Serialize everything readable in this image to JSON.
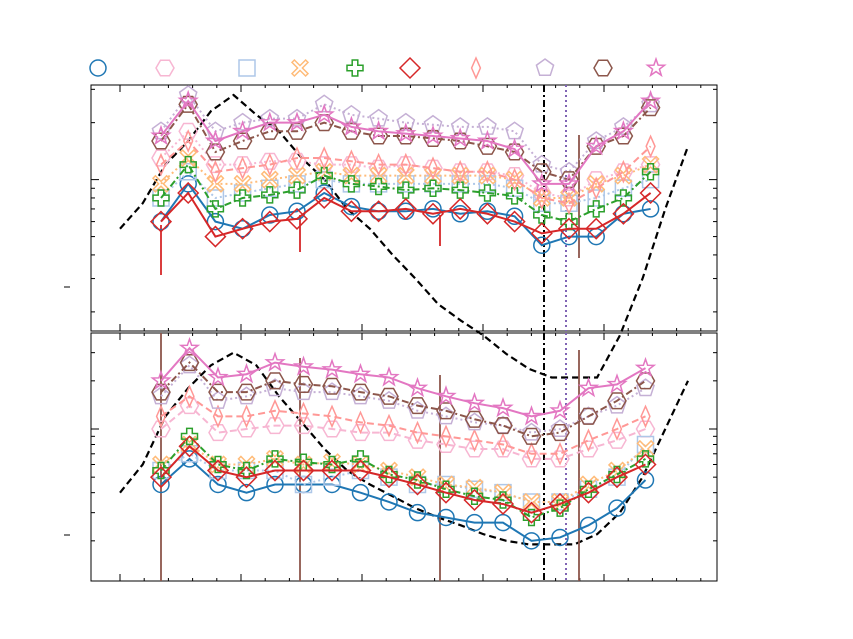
{
  "chart_data": {
    "type": "line",
    "y_scale": "log",
    "x": [
      1,
      2,
      3,
      4,
      5,
      6,
      7,
      8,
      9,
      10,
      11,
      12,
      13,
      14,
      15,
      16,
      17,
      18,
      19,
      20,
      21,
      22,
      23
    ],
    "legend": {
      "placement": "top",
      "entries": 10
    },
    "panels": [
      {
        "name": "top",
        "series": [
          {
            "marker": "circle",
            "color": "#1f77b4",
            "linestyle": "solid",
            "values": [
              0.6,
              0.95,
              0.6,
              0.55,
              0.65,
              0.68,
              0.85,
              0.72,
              0.68,
              0.68,
              0.7,
              0.66,
              0.68,
              0.64,
              0.45,
              0.5,
              0.5,
              0.66,
              0.7
            ]
          },
          {
            "marker": "hexagon",
            "color": "#f7b6d2",
            "linestyle": "dotted",
            "values": [
              1.3,
              1.8,
              1.2,
              1.2,
              1.25,
              1.25,
              1.2,
              1.2,
              1.15,
              1.2,
              1.15,
              1.1,
              1.1,
              1.05,
              0.85,
              0.8,
              1.0,
              1.1,
              1.2
            ]
          },
          {
            "marker": "square",
            "color": "#aec7e8",
            "linestyle": "dotted",
            "values": [
              0.8,
              1.1,
              0.8,
              0.85,
              0.9,
              0.95,
              1.0,
              0.95,
              0.95,
              0.95,
              0.95,
              0.95,
              0.95,
              0.9,
              0.75,
              0.75,
              0.8,
              0.9,
              1.0
            ]
          },
          {
            "marker": "x",
            "color": "#ffbb78",
            "linestyle": "dotted",
            "values": [
              0.95,
              1.3,
              0.95,
              0.95,
              1.0,
              1.05,
              1.1,
              1.05,
              1.05,
              1.05,
              1.05,
              1.05,
              1.05,
              1.0,
              0.8,
              0.8,
              0.95,
              1.05,
              1.2
            ]
          },
          {
            "marker": "plus",
            "color": "#2ca02c",
            "linestyle": "dashdot",
            "values": [
              0.8,
              1.2,
              0.7,
              0.8,
              0.83,
              0.88,
              1.05,
              0.95,
              0.92,
              0.88,
              0.9,
              0.88,
              0.85,
              0.82,
              0.65,
              0.6,
              0.7,
              0.8,
              1.1
            ]
          },
          {
            "marker": "diamond",
            "color": "#d62728",
            "linestyle": "solid",
            "values": [
              0.6,
              0.85,
              0.5,
              0.55,
              0.6,
              0.62,
              0.8,
              0.68,
              0.68,
              0.7,
              0.66,
              0.7,
              0.66,
              0.6,
              0.52,
              0.55,
              0.55,
              0.66,
              0.85
            ]
          },
          {
            "marker": "thin-diamond",
            "color": "#ff9896",
            "linestyle": "dashed",
            "values": [
              1.2,
              1.6,
              1.1,
              1.15,
              1.2,
              1.3,
              1.3,
              1.25,
              1.2,
              1.2,
              1.15,
              1.1,
              1.1,
              1.0,
              0.8,
              0.75,
              0.9,
              1.1,
              1.5
            ]
          },
          {
            "marker": "pentagon",
            "color": "#c5b0d5",
            "linestyle": "dotted",
            "values": [
              1.8,
              2.8,
              1.8,
              2.0,
              2.1,
              2.1,
              2.5,
              2.2,
              2.1,
              2.0,
              1.95,
              1.9,
              1.9,
              1.8,
              1.2,
              1.1,
              1.6,
              1.9,
              2.5
            ]
          },
          {
            "marker": "hexagon",
            "color": "#8c564b",
            "linestyle": "dashdot",
            "values": [
              1.6,
              2.5,
              1.4,
              1.6,
              1.8,
              1.8,
              2.0,
              1.8,
              1.7,
              1.7,
              1.65,
              1.6,
              1.5,
              1.4,
              1.1,
              1.0,
              1.5,
              1.7,
              2.4
            ]
          },
          {
            "marker": "star",
            "color": "#e377c2",
            "linestyle": "solid",
            "values": [
              1.7,
              2.6,
              1.6,
              1.8,
              2.0,
              2.0,
              2.2,
              1.9,
              1.8,
              1.75,
              1.7,
              1.65,
              1.6,
              1.45,
              0.95,
              0.95,
              1.5,
              1.8,
              2.6
            ]
          }
        ]
      },
      {
        "name": "bottom",
        "series": [
          {
            "marker": "circle",
            "color": "#1f77b4",
            "linestyle": "solid",
            "values": [
              0.45,
              0.65,
              0.45,
              0.4,
              0.45,
              0.45,
              0.45,
              0.4,
              0.35,
              0.3,
              0.28,
              0.26,
              0.26,
              0.2,
              0.21,
              0.25,
              0.32,
              0.48
            ]
          },
          {
            "marker": "hexagon",
            "color": "#f7b6d2",
            "linestyle": "dashed",
            "values": [
              1.0,
              1.4,
              0.95,
              1.0,
              1.05,
              1.05,
              1.0,
              0.95,
              0.95,
              0.85,
              0.8,
              0.75,
              0.75,
              0.65,
              0.65,
              0.75,
              0.85,
              1.0
            ]
          },
          {
            "marker": "square",
            "color": "#aec7e8",
            "linestyle": "dotted",
            "values": [
              0.55,
              0.7,
              0.55,
              0.55,
              0.55,
              0.45,
              0.5,
              0.55,
              0.5,
              0.45,
              0.45,
              0.42,
              0.4,
              0.35,
              0.35,
              0.42,
              0.5,
              0.8
            ]
          },
          {
            "marker": "x",
            "color": "#ffbb78",
            "linestyle": "dotted",
            "values": [
              0.6,
              0.8,
              0.6,
              0.6,
              0.65,
              0.6,
              0.62,
              0.6,
              0.55,
              0.5,
              0.45,
              0.43,
              0.4,
              0.35,
              0.35,
              0.45,
              0.55,
              0.75
            ]
          },
          {
            "marker": "plus",
            "color": "#2ca02c",
            "linestyle": "dashdot",
            "values": [
              0.55,
              0.9,
              0.6,
              0.55,
              0.65,
              0.62,
              0.6,
              0.65,
              0.52,
              0.48,
              0.42,
              0.38,
              0.36,
              0.28,
              0.32,
              0.42,
              0.52,
              0.65
            ]
          },
          {
            "marker": "diamond",
            "color": "#d62728",
            "linestyle": "solid",
            "values": [
              0.5,
              0.78,
              0.55,
              0.5,
              0.55,
              0.55,
              0.55,
              0.55,
              0.5,
              0.45,
              0.4,
              0.36,
              0.34,
              0.3,
              0.34,
              0.4,
              0.5,
              0.6
            ]
          },
          {
            "marker": "thin-diamond",
            "color": "#ff9896",
            "linestyle": "dashed",
            "values": [
              1.2,
              1.6,
              1.2,
              1.2,
              1.3,
              1.25,
              1.2,
              1.1,
              1.05,
              0.95,
              0.9,
              0.85,
              0.8,
              0.7,
              0.7,
              0.85,
              1.0,
              1.2
            ]
          },
          {
            "marker": "pentagon",
            "color": "#c5b0d5",
            "linestyle": "dotted",
            "values": [
              1.6,
              2.5,
              1.5,
              1.6,
              1.8,
              1.7,
              1.7,
              1.6,
              1.5,
              1.3,
              1.2,
              1.1,
              1.05,
              0.95,
              1.0,
              1.2,
              1.4,
              1.8
            ]
          },
          {
            "marker": "hexagon",
            "color": "#8c564b",
            "linestyle": "dashdot",
            "values": [
              1.7,
              2.6,
              1.7,
              1.7,
              2.0,
              1.9,
              1.85,
              1.7,
              1.6,
              1.4,
              1.3,
              1.15,
              1.05,
              0.9,
              0.95,
              1.2,
              1.5,
              2.0
            ]
          },
          {
            "marker": "star",
            "color": "#e377c2",
            "linestyle": "solid",
            "values": [
              2.0,
              3.2,
              2.1,
              2.2,
              2.6,
              2.45,
              2.35,
              2.2,
              2.1,
              1.8,
              1.6,
              1.45,
              1.35,
              1.2,
              1.3,
              1.8,
              1.9,
              2.4
            ]
          }
        ]
      }
    ],
    "reference_curves": [
      {
        "panel": "top",
        "color": "#000000",
        "linestyle": "dashed",
        "values": [
          0.55,
          0.75,
          1.2,
          1.6,
          2.3,
          2.8,
          2.2,
          1.8,
          1.3,
          1.0,
          0.7,
          0.55,
          0.4,
          0.3,
          0.22,
          0.18,
          0.15,
          0.12,
          0.1,
          0.09,
          0.09,
          0.09,
          0.15,
          0.3,
          0.7,
          1.5
        ]
      },
      {
        "panel": "bottom",
        "color": "#000000",
        "linestyle": "dashed",
        "values": [
          0.4,
          0.6,
          1.2,
          1.8,
          2.5,
          3.0,
          2.5,
          1.6,
          1.1,
          0.75,
          0.55,
          0.45,
          0.38,
          0.32,
          0.28,
          0.25,
          0.22,
          0.2,
          0.19,
          0.19,
          0.19,
          0.22,
          0.3,
          0.5,
          1.0,
          2.0
        ]
      }
    ],
    "vertical_lines": [
      {
        "x": 15.2,
        "color": "#000000",
        "linestyle": "dashdot"
      },
      {
        "x": 15.7,
        "color": "#8064b4",
        "linestyle": "dotted"
      }
    ]
  }
}
